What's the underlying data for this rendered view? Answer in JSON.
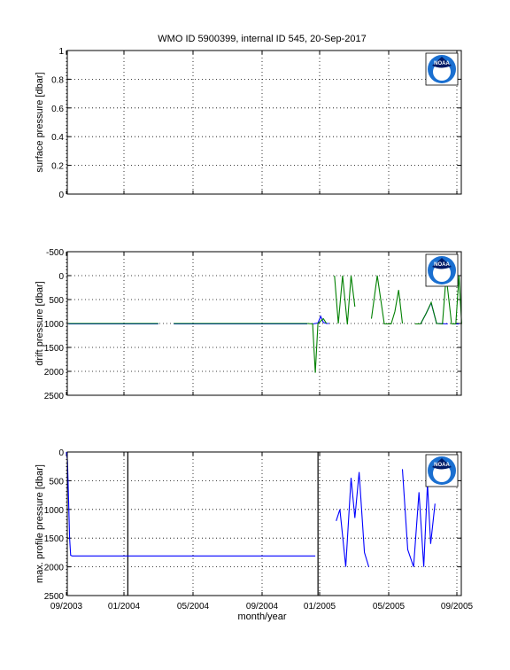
{
  "title": "WMO ID 5900399, internal ID 545, 20-Sep-2017",
  "xlabel": "month/year",
  "x_ticks": [
    "09/2003",
    "01/2004",
    "05/2004",
    "09/2004",
    "01/2005",
    "05/2005",
    "09/2005"
  ],
  "logo_text": "NOAA",
  "chart_data": [
    {
      "type": "line",
      "ylabel": "surface pressure [dbar]",
      "ylim": [
        0,
        1
      ],
      "y_ticks": [
        "0",
        "0.2",
        "0.4",
        "0.6",
        "0.8",
        "1"
      ],
      "y_reversed": false,
      "grid": true,
      "series": []
    },
    {
      "type": "line",
      "ylabel": "drift pressure [dbar]",
      "ylim": [
        -500,
        2500
      ],
      "y_ticks": [
        "-500",
        "0",
        "500",
        "1000",
        "1500",
        "2000",
        "2500"
      ],
      "y_reversed": true,
      "grid": true,
      "series": [
        {
          "color": "#0000ff",
          "segments": [
            [
              [
                "2003-09-05",
                1010
              ],
              [
                "2004-02-20",
                1010
              ]
            ],
            [
              [
                "2004-03-20",
                1010
              ],
              [
                "2004-11-25",
                1010
              ]
            ],
            [
              [
                "2004-12-05",
                1010
              ],
              [
                "2004-12-15",
                990
              ],
              [
                "2004-12-20",
                850
              ],
              [
                "2004-12-25",
                980
              ],
              [
                "2004-12-31",
                1000
              ],
              [
                "2005-01-05",
                1000
              ]
            ],
            [
              [
                "2005-06-25",
                1010
              ],
              [
                "2005-07-05",
                800
              ],
              [
                "2005-07-15",
                570
              ],
              [
                "2005-07-25",
                1000
              ],
              [
                "2005-08-15",
                1010
              ]
            ],
            [
              [
                "2005-08-25",
                1010
              ],
              [
                "2005-09-05",
                1010
              ]
            ]
          ]
        },
        {
          "color": "#008000",
          "segments": [
            [
              [
                "2003-09-05",
                1000
              ],
              [
                "2003-11-15",
                1000
              ],
              [
                "2004-02-20",
                1000
              ]
            ],
            [
              [
                "2004-03-20",
                1000
              ],
              [
                "2004-11-25",
                1000
              ]
            ],
            [
              [
                "2004-11-25",
                1000
              ],
              [
                "2004-12-05",
                1010
              ],
              [
                "2004-12-10",
                2030
              ],
              [
                "2004-12-15",
                1000
              ],
              [
                "2004-12-25",
                900
              ],
              [
                "2004-12-31",
                1000
              ]
            ],
            [
              [
                "2005-01-15",
                0
              ],
              [
                "2005-01-22",
                1000
              ],
              [
                "2005-01-30",
                0
              ],
              [
                "2005-02-08",
                1020
              ],
              [
                "2005-02-15",
                0
              ],
              [
                "2005-02-22",
                650
              ]
            ],
            [
              [
                "2005-03-25",
                900
              ],
              [
                "2005-04-05",
                0
              ],
              [
                "2005-04-18",
                1010
              ],
              [
                "2005-05-01",
                1010
              ],
              [
                "2005-05-08",
                750
              ],
              [
                "2005-05-15",
                300
              ],
              [
                "2005-05-22",
                1000
              ]
            ],
            [
              [
                "2005-06-15",
                1010
              ],
              [
                "2005-06-25",
                1010
              ],
              [
                "2005-07-05",
                800
              ],
              [
                "2005-07-15",
                560
              ],
              [
                "2005-07-25",
                1000
              ],
              [
                "2005-08-05",
                1010
              ],
              [
                "2005-08-12",
                0
              ],
              [
                "2005-08-22",
                1010
              ],
              [
                "2005-08-30",
                1010
              ],
              [
                "2005-09-05",
                0
              ],
              [
                "2005-09-10",
                1010
              ]
            ]
          ]
        }
      ]
    },
    {
      "type": "line",
      "ylabel": "max. profile pressure [dbar]",
      "ylim": [
        0,
        2500
      ],
      "y_ticks": [
        "0",
        "500",
        "1000",
        "1500",
        "2000",
        "2500"
      ],
      "y_reversed": true,
      "grid": true,
      "vertical_markers": [
        "2003-12-25",
        "2004-12-15"
      ],
      "series": [
        {
          "color": "#0000ff",
          "segments": [
            [
              [
                "2003-09-01",
                0
              ],
              [
                "2003-09-03",
                150
              ],
              [
                "2003-09-05",
                800
              ],
              [
                "2003-09-07",
                1500
              ],
              [
                "2003-09-09",
                1800
              ],
              [
                "2003-09-12",
                1810
              ],
              [
                "2004-12-10",
                1810
              ]
            ],
            [
              [
                "2005-01-18",
                1200
              ],
              [
                "2005-01-25",
                1000
              ],
              [
                "2005-02-05",
                2000
              ],
              [
                "2005-02-15",
                450
              ],
              [
                "2005-02-22",
                1150
              ],
              [
                "2005-03-02",
                350
              ],
              [
                "2005-03-12",
                1750
              ],
              [
                "2005-03-20",
                2000
              ]
            ],
            [
              [
                "2005-05-22",
                300
              ],
              [
                "2005-06-01",
                1700
              ],
              [
                "2005-06-12",
                2000
              ],
              [
                "2005-06-22",
                700
              ],
              [
                "2005-07-01",
                2000
              ],
              [
                "2005-07-08",
                550
              ],
              [
                "2005-07-14",
                1600
              ],
              [
                "2005-07-22",
                900
              ]
            ]
          ]
        }
      ]
    }
  ]
}
